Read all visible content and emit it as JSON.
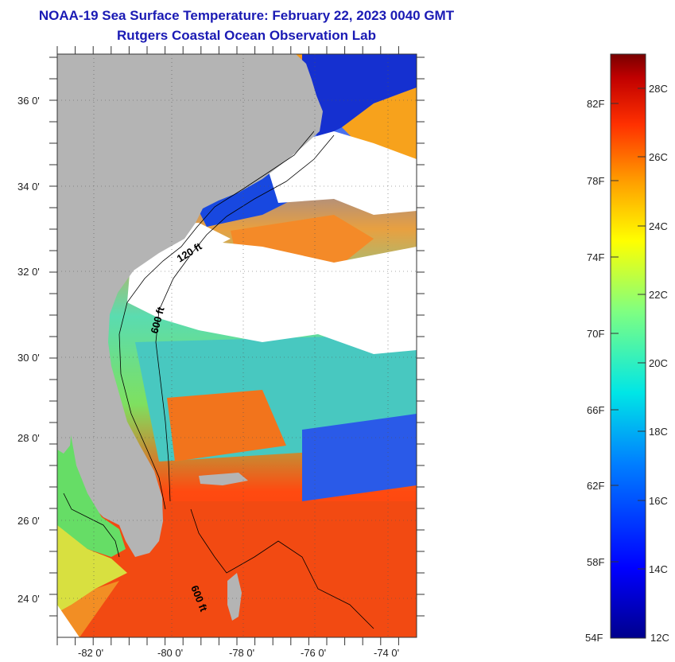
{
  "header": {
    "title": "NOAA-19 Sea Surface Temperature:  February 22, 2023 0040 GMT",
    "subtitle": "Rutgers Coastal Ocean Observation Lab"
  },
  "map": {
    "lat_labels": [
      "36 0'",
      "34 0'",
      "32 0'",
      "30 0'",
      "28 0'",
      "26 0'",
      "24 0'"
    ],
    "lon_labels": [
      "-82 0'",
      "-80 0'",
      "-78 0'",
      "-76 0'",
      "-74 0'"
    ],
    "contour_labels": [
      "120 ft",
      "600 ft",
      "600 ft"
    ],
    "land_color": "#b4b4b4",
    "cloud_color": "#ffffff"
  },
  "colorbar": {
    "fahrenheit_labels": [
      "82F",
      "78F",
      "74F",
      "70F",
      "66F",
      "62F",
      "58F",
      "54F"
    ],
    "celsius_labels": [
      "28C",
      "26C",
      "24C",
      "22C",
      "20C",
      "18C",
      "16C",
      "14C",
      "12C"
    ],
    "colors": [
      "#00008c",
      "#0000ff",
      "#0080ff",
      "#00e6e6",
      "#80ff80",
      "#ffff00",
      "#ffa000",
      "#ff3000",
      "#c00000",
      "#780000"
    ]
  }
}
